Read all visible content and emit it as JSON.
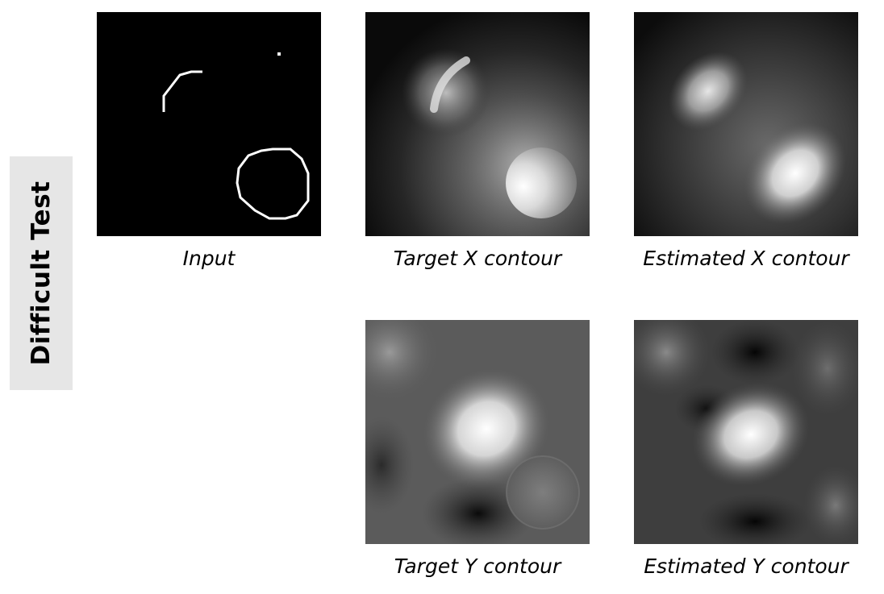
{
  "row_label": "Difficult Test",
  "panels": {
    "input": {
      "caption": "Input"
    },
    "target_x": {
      "caption": "Target X contour"
    },
    "estimated_x": {
      "caption": "Estimated X contour"
    },
    "target_y": {
      "caption": "Target Y contour"
    },
    "estimated_y": {
      "caption": "Estimated Y contour"
    }
  }
}
